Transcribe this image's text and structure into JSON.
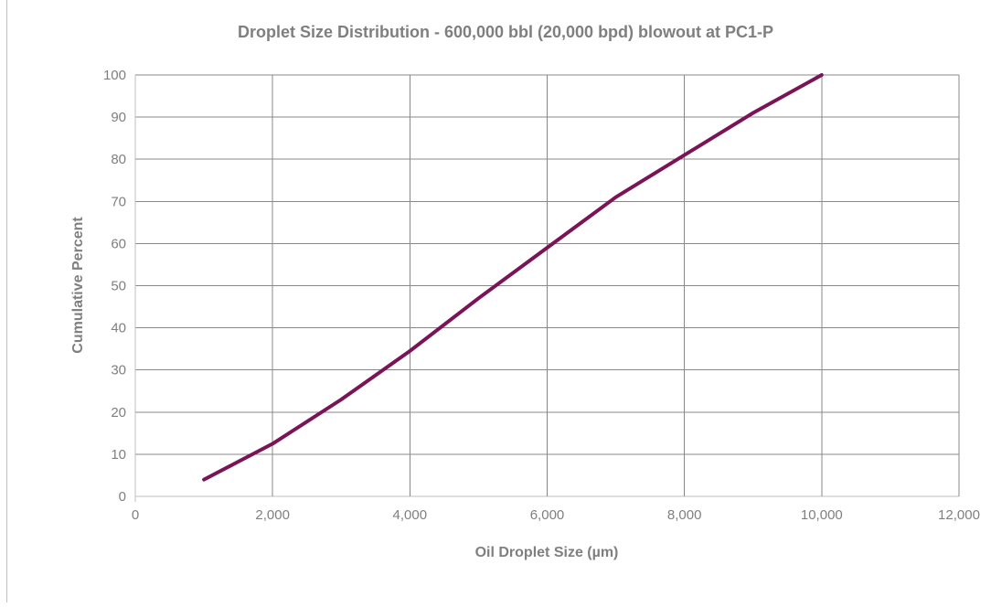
{
  "chart_data": {
    "type": "line",
    "title": "Droplet Size Distribution - 600,000 bbl (20,000 bpd) blowout at PC1-P",
    "xlabel": "Oil Droplet Size (µm)",
    "ylabel": "Cumulative Percent",
    "xlim": [
      0,
      12000
    ],
    "ylim": [
      0,
      100
    ],
    "xticks": [
      0,
      2000,
      4000,
      6000,
      8000,
      10000,
      12000
    ],
    "xtick_labels": [
      "0",
      "2,000",
      "4,000",
      "6,000",
      "8,000",
      "10,000",
      "12,000"
    ],
    "yticks": [
      0,
      10,
      20,
      30,
      40,
      50,
      60,
      70,
      80,
      90,
      100
    ],
    "ytick_labels": [
      "0",
      "10",
      "20",
      "30",
      "40",
      "50",
      "60",
      "70",
      "80",
      "90",
      "100"
    ],
    "grid": true,
    "legend": "none",
    "series": [
      {
        "color": "#7b1457",
        "x": [
          1000,
          2000,
          3000,
          4000,
          5000,
          6000,
          7000,
          8000,
          9000,
          10000
        ],
        "y": [
          4,
          12.5,
          23,
          34.5,
          47,
          59,
          71,
          81,
          91,
          100
        ]
      }
    ]
  }
}
